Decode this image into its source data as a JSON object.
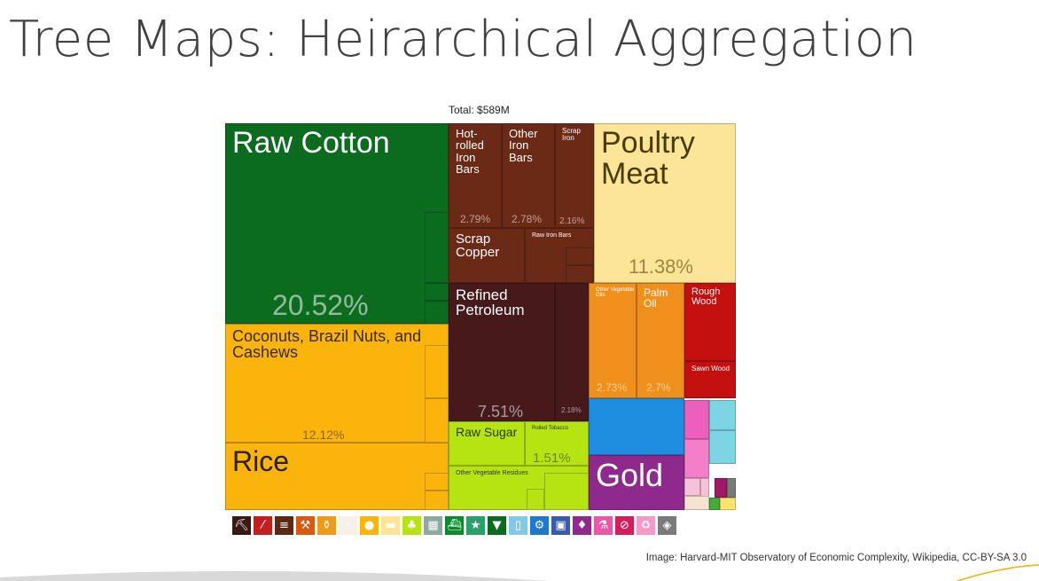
{
  "slide": {
    "title": "Tree Maps: Heirarchical Aggregation",
    "credit": "Image: Harvard-MIT Observatory of Economic Complexity, Wikipedia, CC-BY-SA 3.0"
  },
  "chart_data": {
    "type": "treemap",
    "total_label": "Total: $589M",
    "items": [
      {
        "name": "Raw Cotton",
        "share_label": "20.52%",
        "share": 20.52,
        "color": "#0b6b1e"
      },
      {
        "name": "Coconuts, Brazil Nuts, and Cashews",
        "share_label": "12.12%",
        "share": 12.12,
        "color": "#fbb40c"
      },
      {
        "name": "Rice",
        "share_label": "",
        "share": 8.3,
        "color": "#fbb40c"
      },
      {
        "name": "Hot-rolled Iron Bars",
        "share_label": "2.79%",
        "share": 2.79,
        "color": "#6b2a15"
      },
      {
        "name": "Other Iron Bars",
        "share_label": "2.78%",
        "share": 2.78,
        "color": "#6b2a15"
      },
      {
        "name": "Scrap Iron",
        "share_label": "2.16%",
        "share": 2.16,
        "color": "#6b2a15"
      },
      {
        "name": "Scrap Copper",
        "share_label": "",
        "share": 1.4,
        "color": "#6b2a15"
      },
      {
        "name": "Raw Iron Bars",
        "share_label": "",
        "share": 0.7,
        "color": "#6b2a15"
      },
      {
        "name": "Poultry Meat",
        "share_label": "11.38%",
        "share": 11.38,
        "color": "#fde597"
      },
      {
        "name": "Refined Petroleum",
        "share_label": "7.51%",
        "share": 7.51,
        "color": "#461a1a"
      },
      {
        "name": "",
        "share_label": "2.18%",
        "share": 2.18,
        "color": "#461a1a"
      },
      {
        "name": "Other Vegetable Oils",
        "share_label": "2.73%",
        "share": 2.73,
        "color": "#f0901c"
      },
      {
        "name": "Palm Oil",
        "share_label": "2.7%",
        "share": 2.7,
        "color": "#f0901c"
      },
      {
        "name": "Rough Wood",
        "share_label": "",
        "share": 1.4,
        "color": "#c40f0f"
      },
      {
        "name": "Sawn Wood",
        "share_label": "",
        "share": 1.0,
        "color": "#c40f0f"
      },
      {
        "name": "Raw Sugar",
        "share_label": "",
        "share": 1.6,
        "color": "#b6e312"
      },
      {
        "name": "Rolled Tobacco",
        "share_label": "1.51%",
        "share": 1.51,
        "color": "#b6e312"
      },
      {
        "name": "Other Vegetable Residues",
        "share_label": "",
        "share": 1.3,
        "color": "#b6e312"
      },
      {
        "name": "Gold",
        "share_label": "",
        "share": 3.2,
        "color": "#8e2a8c"
      },
      {
        "name": "",
        "share_label": "",
        "share": 3.0,
        "color": "#1e8fe0"
      }
    ],
    "legend_icons": [
      {
        "icon": "pickaxe-icon",
        "color": "#3a1a10",
        "glyph": "⛏"
      },
      {
        "icon": "slash-icon",
        "color": "#c31f1f",
        "glyph": "⁄"
      },
      {
        "icon": "beam-icon",
        "color": "#5c2a14",
        "glyph": "≡"
      },
      {
        "icon": "tools-icon",
        "color": "#d85a12",
        "glyph": "⚒"
      },
      {
        "icon": "bottle-icon",
        "color": "#f09a1c",
        "glyph": "⚱"
      },
      {
        "icon": "blank-icon",
        "color": "#f5f0e8",
        "glyph": "·"
      },
      {
        "icon": "orange-icon",
        "color": "#fbb40c",
        "glyph": "●"
      },
      {
        "icon": "flag-icon",
        "color": "#fde597",
        "glyph": "▬"
      },
      {
        "icon": "leaf-icon",
        "color": "#b6e312",
        "glyph": "♣"
      },
      {
        "icon": "building-icon",
        "color": "#8fa8a0",
        "glyph": "▦"
      },
      {
        "icon": "boat-icon",
        "color": "#0b8a2c",
        "glyph": "⛴"
      },
      {
        "icon": "star-icon",
        "color": "#2aa06a",
        "glyph": "★"
      },
      {
        "icon": "shirt-icon",
        "color": "#0b6b1e",
        "glyph": "▼"
      },
      {
        "icon": "box-icon",
        "color": "#82c8e8",
        "glyph": "▯"
      },
      {
        "icon": "gears-icon",
        "color": "#1e78d0",
        "glyph": "⚙"
      },
      {
        "icon": "chip-icon",
        "color": "#3b5aa8",
        "glyph": "▣"
      },
      {
        "icon": "gem-icon",
        "color": "#8e2a8c",
        "glyph": "♦"
      },
      {
        "icon": "flask-icon",
        "color": "#e85aa8",
        "glyph": "⚗"
      },
      {
        "icon": "circle-slash-icon",
        "color": "#d81b5a",
        "glyph": "⊘"
      },
      {
        "icon": "recycle-icon",
        "color": "#f59ac6",
        "glyph": "♻"
      },
      {
        "icon": "cube-icon",
        "color": "#7a7a7a",
        "glyph": "◈"
      }
    ]
  }
}
